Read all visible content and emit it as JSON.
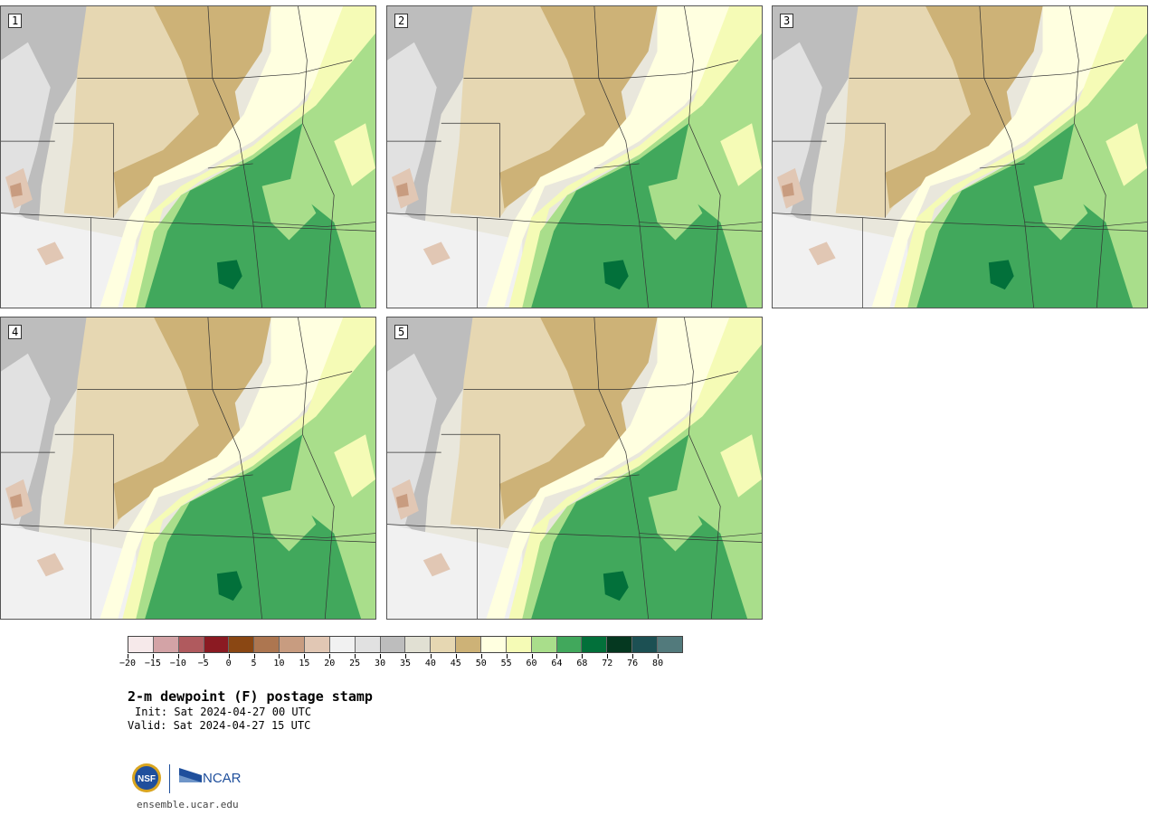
{
  "panels": [
    {
      "id": "1",
      "label": "1"
    },
    {
      "id": "2",
      "label": "2"
    },
    {
      "id": "3",
      "label": "3"
    },
    {
      "id": "4",
      "label": "4"
    },
    {
      "id": "5",
      "label": "5"
    }
  ],
  "colorbar": {
    "colors": [
      "#f6e9ea",
      "#d3a3a6",
      "#b05a5e",
      "#8b1a22",
      "#8a4713",
      "#ad7650",
      "#c89c80",
      "#e1c7b4",
      "#f1f1f1",
      "#e1e1e1",
      "#bdbdbd",
      "#e1e0d3",
      "#e6d7b2",
      "#cdb277",
      "#ffffe0",
      "#f5fbb6",
      "#a9de8b",
      "#41a85c",
      "#02703a",
      "#053820",
      "#1c5053",
      "#527a7c"
    ],
    "tick_labels": [
      "−20",
      "−15",
      "−10",
      "−5",
      "0",
      "5",
      "10",
      "15",
      "20",
      "25",
      "30",
      "35",
      "40",
      "45",
      "50",
      "55",
      "60",
      "64",
      "68",
      "72",
      "76",
      "80"
    ]
  },
  "title": "2-m dewpoint (F) postage stamp",
  "init": "Init: Sat 2024-04-27 00 UTC",
  "valid": "Valid: Sat 2024-04-27 15 UTC",
  "logos": {
    "nsf": "NSF",
    "ncar": "NCAR"
  },
  "site": "ensemble.ucar.edu"
}
